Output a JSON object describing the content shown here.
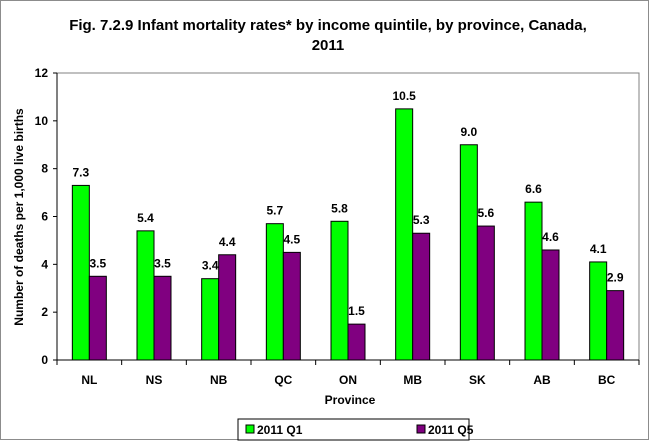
{
  "chart_data": {
    "type": "bar",
    "title_line1": "Fig. 7.2.9 Infant mortality rates* by income quintile, by province, Canada,",
    "title_line2": "2011",
    "xlabel": "Province",
    "ylabel": "Number of deaths per 1,000 live births",
    "categories": [
      "NL",
      "NS",
      "NB",
      "QC",
      "ON",
      "MB",
      "SK",
      "AB",
      "BC"
    ],
    "series": [
      {
        "name": "2011 Q1",
        "color": "#00ff00",
        "values": [
          7.3,
          5.4,
          3.4,
          5.7,
          5.8,
          10.5,
          9.0,
          6.6,
          4.1
        ]
      },
      {
        "name": "2011 Q5",
        "color": "#800080",
        "values": [
          3.5,
          3.5,
          4.4,
          4.5,
          1.5,
          5.3,
          5.6,
          4.6,
          2.9
        ]
      }
    ],
    "ylim": [
      0,
      12
    ],
    "yticks": [
      0,
      2,
      4,
      6,
      8,
      10,
      12
    ],
    "grid": false,
    "legend_position": "bottom",
    "plot_background": "#ffffff"
  }
}
